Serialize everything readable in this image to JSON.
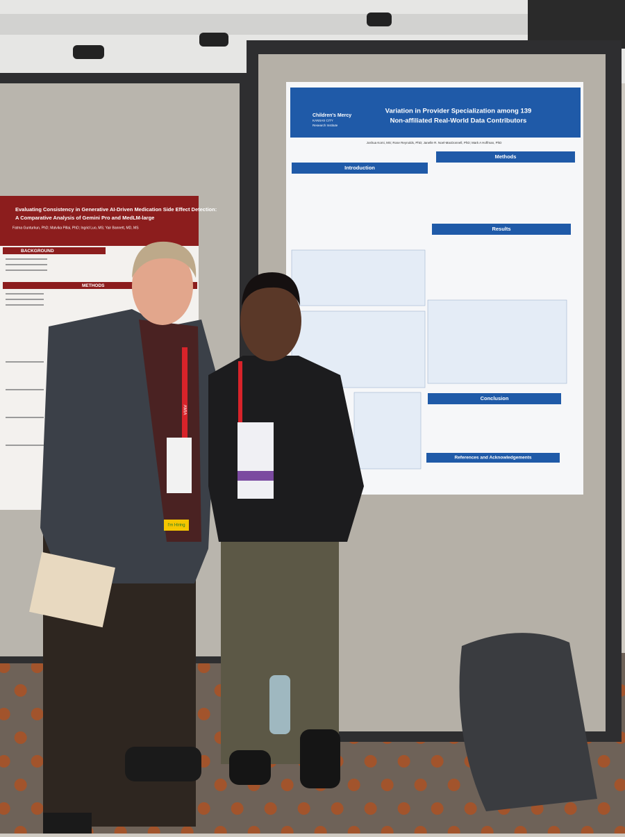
{
  "right_poster": {
    "institution": "Children's Mercy",
    "institution_sub": "KANSAS CITY",
    "institution_unit": "Research Institute",
    "title_lines": [
      "Variation in Provider Specialization among 139",
      "Non-affiliated Real-World Data Contributors"
    ],
    "authors": "Joshua Komi, MS; Rose Reynolds, PhD; Janelle R. Noel-MacDonnell, PhD; Mark A Hoffman, PhD",
    "sections": [
      "Introduction",
      "Methods",
      "Results",
      "Conclusion",
      "References and Acknowledgements"
    ]
  },
  "left_poster": {
    "title_lines": [
      "Evaluating Consistency in Generative AI-Driven Medication Side Effect Detection:",
      "A Comparative Analysis of Gemini Pro and MedLM-large"
    ],
    "authors": "Fatma Gunturkun, PhD; Malvika Pillai, PhD; Ingrid Luo, MS; Yair Bannett, MD, MS",
    "sections": [
      "BACKGROUND",
      "METHODS"
    ]
  },
  "lanyard": "AMIA",
  "badge_ribbons": [
    "I'm Hiring"
  ]
}
